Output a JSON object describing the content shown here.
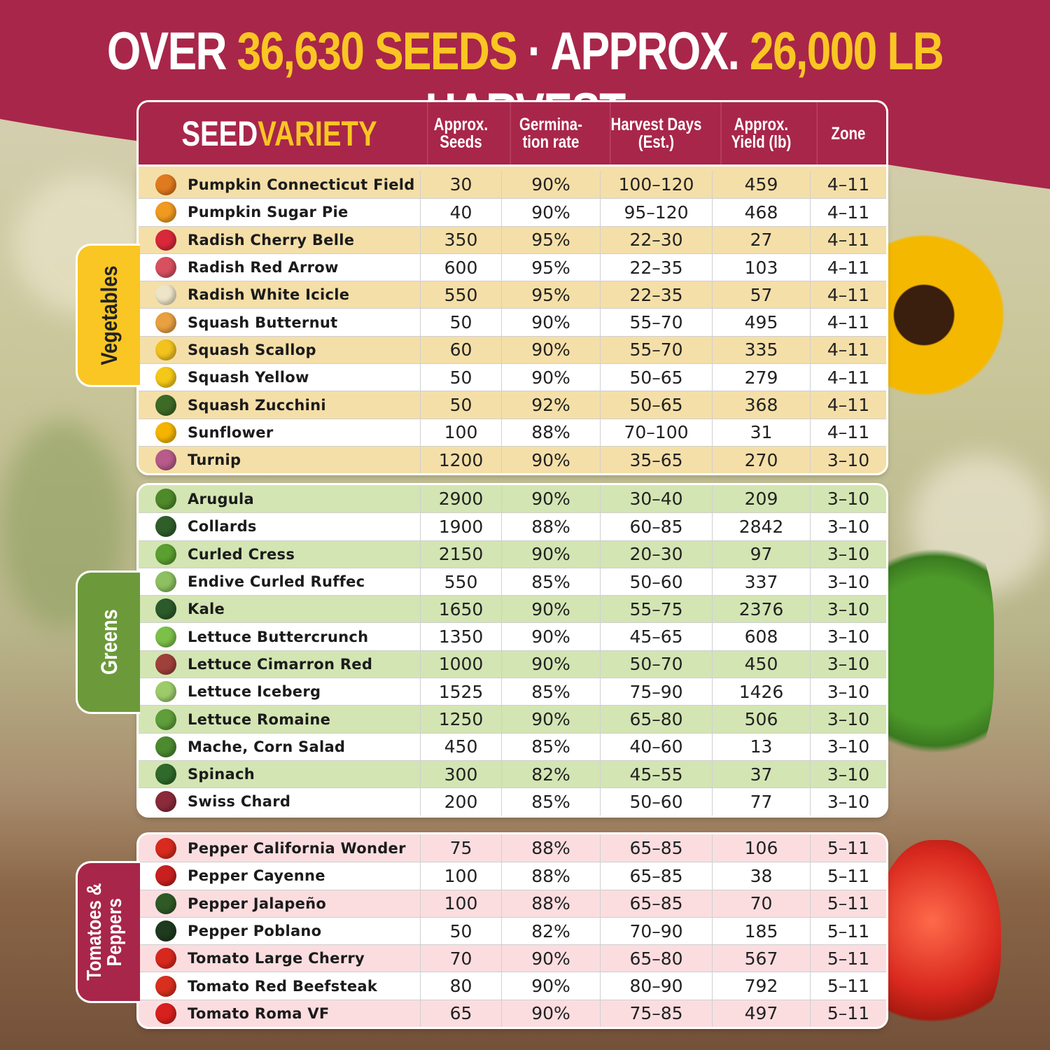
{
  "title": {
    "part1": "OVER ",
    "seeds": "36,630 SEEDS",
    "part2": " · APPROX. ",
    "harvest": "26,000 LB",
    "part3": " HARVEST"
  },
  "colors": {
    "brand": "#a8264a",
    "accent": "#f9c623",
    "vegetables_row": "#f5dfa8",
    "greens_row": "#d3e5b3",
    "tomatoes_row": "#fbdde0",
    "greens_tab": "#6c9a3a"
  },
  "header": {
    "seed": "SEED ",
    "variety": "VARIETY",
    "columns": [
      "Approx. Seeds",
      "Germina- tion rate",
      "Harvest Days (Est.)",
      "Approx. Yield (lb)",
      "Zone"
    ]
  },
  "sections": [
    {
      "label": "Vegetables",
      "rows": [
        [
          "Pumpkin Connecticut Field",
          "30",
          "90%",
          "100–120",
          "459",
          "4–11",
          "pumpkin-icon",
          "#e07a1e"
        ],
        [
          "Pumpkin Sugar Pie",
          "40",
          "90%",
          "95–120",
          "468",
          "4–11",
          "pumpkin-icon",
          "#f09a20"
        ],
        [
          "Radish Cherry Belle",
          "350",
          "95%",
          "22–30",
          "27",
          "4–11",
          "radish-icon",
          "#d8283a"
        ],
        [
          "Radish Red Arrow",
          "600",
          "95%",
          "22–35",
          "103",
          "4–11",
          "radish-icon",
          "#d85060"
        ],
        [
          "Radish White Icicle",
          "550",
          "95%",
          "22–35",
          "57",
          "4–11",
          "radish-icon",
          "#eee4c8"
        ],
        [
          "Squash Butternut",
          "50",
          "90%",
          "55–70",
          "495",
          "4–11",
          "squash-icon",
          "#e8a040"
        ],
        [
          "Squash Scallop",
          "60",
          "90%",
          "55–70",
          "335",
          "4–11",
          "squash-icon",
          "#f2c21e"
        ],
        [
          "Squash Yellow",
          "50",
          "90%",
          "50–65",
          "279",
          "4–11",
          "squash-icon",
          "#f4c818"
        ],
        [
          "Squash Zucchini",
          "50",
          "92%",
          "50–65",
          "368",
          "4–11",
          "zucchini-icon",
          "#3d6a26"
        ],
        [
          "Sunflower",
          "100",
          "88%",
          "70–100",
          "31",
          "4–11",
          "sunflower-icon",
          "#f4b400"
        ],
        [
          "Turnip",
          "1200",
          "90%",
          "35–65",
          "270",
          "3–10",
          "turnip-icon",
          "#b85a8a"
        ]
      ]
    },
    {
      "label": "Greens",
      "rows": [
        [
          "Arugula",
          "2900",
          "90%",
          "30–40",
          "209",
          "3–10",
          "leaf-icon",
          "#4f8a2a"
        ],
        [
          "Collards",
          "1900",
          "88%",
          "60–85",
          "2842",
          "3–10",
          "leaf-icon",
          "#2f5e2a"
        ],
        [
          "Curled Cress",
          "2150",
          "90%",
          "20–30",
          "97",
          "3–10",
          "leaf-icon",
          "#5aa030"
        ],
        [
          "Endive Curled Ruffec",
          "550",
          "85%",
          "50–60",
          "337",
          "3–10",
          "leaf-icon",
          "#8cc060"
        ],
        [
          "Kale",
          "1650",
          "90%",
          "55–75",
          "2376",
          "3–10",
          "leaf-icon",
          "#2d5a2a"
        ],
        [
          "Lettuce Buttercrunch",
          "1350",
          "90%",
          "45–65",
          "608",
          "3–10",
          "lettuce-icon",
          "#7cc04a"
        ],
        [
          "Lettuce Cimarron Red",
          "1000",
          "90%",
          "50–70",
          "450",
          "3–10",
          "lettuce-icon",
          "#a0403a"
        ],
        [
          "Lettuce Iceberg",
          "1525",
          "85%",
          "75–90",
          "1426",
          "3–10",
          "lettuce-icon",
          "#9ccc6a"
        ],
        [
          "Lettuce Romaine",
          "1250",
          "90%",
          "65–80",
          "506",
          "3–10",
          "lettuce-icon",
          "#5f9e3a"
        ],
        [
          "Mache, Corn Salad",
          "450",
          "85%",
          "40–60",
          "13",
          "3–10",
          "leaf-icon",
          "#4c8a30"
        ],
        [
          "Spinach",
          "300",
          "82%",
          "45–55",
          "37",
          "3–10",
          "leaf-icon",
          "#2f6a2a"
        ],
        [
          "Swiss Chard",
          "200",
          "85%",
          "50–60",
          "77",
          "3–10",
          "chard-icon",
          "#8a2a3a"
        ]
      ]
    },
    {
      "label": "Tomatoes & Peppers",
      "rows": [
        [
          "Pepper California Wonder",
          "75",
          "88%",
          "65–85",
          "106",
          "5–11",
          "bell-pepper-icon",
          "#d82a1e"
        ],
        [
          "Pepper Cayenne",
          "100",
          "88%",
          "65–85",
          "38",
          "5–11",
          "chili-pepper-icon",
          "#c8201e"
        ],
        [
          "Pepper Jalapeño",
          "100",
          "88%",
          "65–85",
          "70",
          "5–11",
          "jalapeno-icon",
          "#2f5a26"
        ],
        [
          "Pepper Poblano",
          "50",
          "82%",
          "70–90",
          "185",
          "5–11",
          "poblano-icon",
          "#1f3a1e"
        ],
        [
          "Tomato Large Cherry",
          "70",
          "90%",
          "65–80",
          "567",
          "5–11",
          "cherry-tomato-icon",
          "#d8281e"
        ],
        [
          "Tomato Red Beefsteak",
          "80",
          "90%",
          "80–90",
          "792",
          "5–11",
          "tomato-icon",
          "#d8301e"
        ],
        [
          "Tomato Roma VF",
          "65",
          "90%",
          "75–85",
          "497",
          "5–11",
          "tomato-icon",
          "#d8201e"
        ]
      ]
    }
  ]
}
